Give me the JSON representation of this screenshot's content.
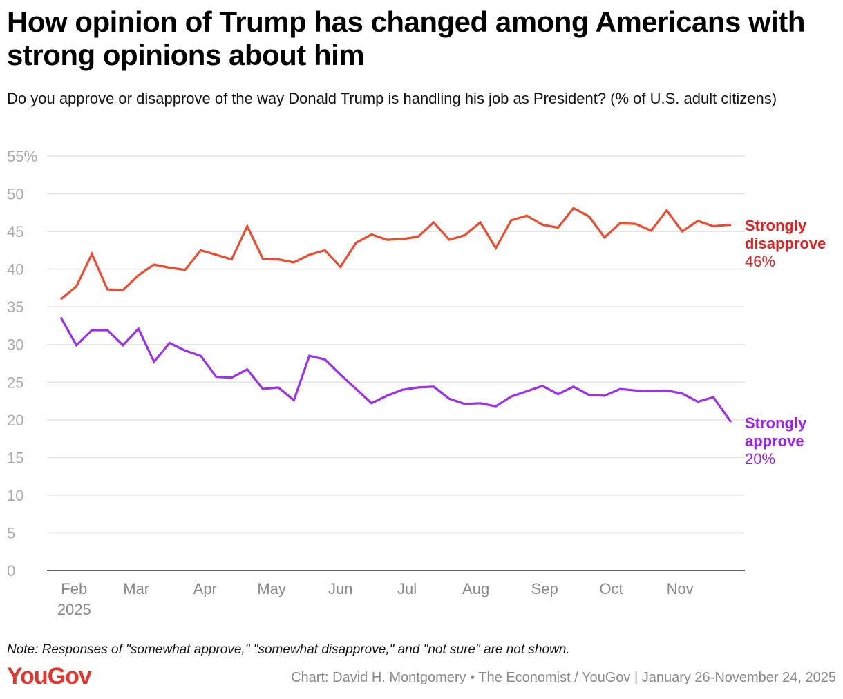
{
  "title": "How opinion of Trump has changed among Americans with strong opinions about him",
  "subtitle": "Do you approve or disapprove of the way Donald Trump is handling his job as President? (% of U.S. adult citizens)",
  "note": "Note: Responses of \"somewhat approve,\" \"somewhat disapprove,\" and \"not sure\" are not shown.",
  "logo": "YouGov",
  "credit": "Chart: David H. Montgomery • The Economist / YouGov | January 26-November 24, 2025",
  "chart_data": {
    "type": "line",
    "ylim": [
      0,
      55
    ],
    "yticks": [
      0,
      5,
      10,
      15,
      20,
      25,
      30,
      35,
      40,
      45,
      50,
      55
    ],
    "ytick_labels": [
      "0",
      "5",
      "10",
      "15",
      "20",
      "25",
      "30",
      "35",
      "40",
      "45",
      "50",
      "55%"
    ],
    "grid": true,
    "xticks": [
      {
        "date": "2025-02-01",
        "label": "Feb",
        "sub": "2025"
      },
      {
        "date": "2025-03-01",
        "label": "Mar"
      },
      {
        "date": "2025-04-01",
        "label": "Apr"
      },
      {
        "date": "2025-05-01",
        "label": "May"
      },
      {
        "date": "2025-06-01",
        "label": "Jun"
      },
      {
        "date": "2025-07-01",
        "label": "Jul"
      },
      {
        "date": "2025-08-01",
        "label": "Aug"
      },
      {
        "date": "2025-09-01",
        "label": "Sep"
      },
      {
        "date": "2025-10-01",
        "label": "Oct"
      },
      {
        "date": "2025-11-01",
        "label": "Nov"
      }
    ],
    "xlim": [
      "2025-01-26",
      "2025-11-24"
    ],
    "x": [
      "2025-01-26",
      "2025-02-02",
      "2025-02-09",
      "2025-02-16",
      "2025-02-23",
      "2025-03-02",
      "2025-03-09",
      "2025-03-16",
      "2025-03-23",
      "2025-03-30",
      "2025-04-06",
      "2025-04-13",
      "2025-04-20",
      "2025-04-27",
      "2025-05-04",
      "2025-05-11",
      "2025-05-18",
      "2025-05-25",
      "2025-06-01",
      "2025-06-08",
      "2025-06-15",
      "2025-06-22",
      "2025-06-29",
      "2025-07-06",
      "2025-07-13",
      "2025-07-20",
      "2025-07-27",
      "2025-08-03",
      "2025-08-10",
      "2025-08-17",
      "2025-08-24",
      "2025-08-31",
      "2025-09-07",
      "2025-09-14",
      "2025-09-21",
      "2025-09-28",
      "2025-10-05",
      "2025-10-12",
      "2025-10-19",
      "2025-10-26",
      "2025-11-02",
      "2025-11-09",
      "2025-11-16",
      "2025-11-24"
    ],
    "series": [
      {
        "name": "Strongly disapprove",
        "end_label": "46%",
        "color": "#f04a2d",
        "label_color": "#e02020",
        "values": [
          36.0,
          37.7,
          42.0,
          37.3,
          37.2,
          39.2,
          40.6,
          40.2,
          39.9,
          42.5,
          41.9,
          41.3,
          45.7,
          41.4,
          41.3,
          40.9,
          41.9,
          42.5,
          40.3,
          43.5,
          44.6,
          43.9,
          44.0,
          44.3,
          46.2,
          43.9,
          44.5,
          46.2,
          42.8,
          46.5,
          47.1,
          45.9,
          45.5,
          48.1,
          47.0,
          44.2,
          46.1,
          46.0,
          45.1,
          47.8,
          45.0,
          46.4,
          45.7,
          45.9
        ]
      },
      {
        "name": "Strongly approve",
        "end_label": "20%",
        "color": "#9b30f0",
        "label_color": "#9b20f0",
        "values": [
          33.6,
          29.9,
          31.9,
          31.9,
          29.9,
          32.1,
          27.7,
          30.2,
          29.2,
          28.5,
          25.7,
          25.6,
          26.7,
          24.1,
          24.3,
          22.6,
          28.5,
          28.0,
          26.0,
          24.1,
          22.2,
          23.2,
          24.0,
          24.3,
          24.4,
          22.8,
          22.1,
          22.2,
          21.8,
          23.1,
          23.8,
          24.5,
          23.4,
          24.4,
          23.3,
          23.2,
          24.1,
          23.9,
          23.8,
          23.9,
          23.5,
          22.4,
          23.0,
          19.7
        ]
      }
    ]
  }
}
